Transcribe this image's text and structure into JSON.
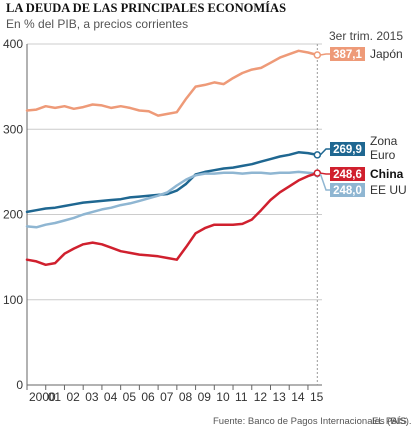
{
  "chart_data": {
    "type": "line",
    "title": "LA DEUDA DE LAS PRINCIPALES ECONOMÍAS",
    "subtitle": "En % del PIB, a precios corrientes",
    "annotation": "3er trim. 2015",
    "source": "Fuente: Banco de Pagos Internacionales (BIS).",
    "credit": "EL PAÍS",
    "ylim": [
      0,
      400
    ],
    "yticks": [
      0,
      100,
      200,
      300,
      400
    ],
    "xlim": [
      2000,
      2015.75
    ],
    "x_ticks": [
      {
        "x": 2000,
        "label": "2000"
      },
      {
        "x": 2001,
        "label": "01"
      },
      {
        "x": 2002,
        "label": "02"
      },
      {
        "x": 2003,
        "label": "03"
      },
      {
        "x": 2004,
        "label": "04"
      },
      {
        "x": 2005,
        "label": "05"
      },
      {
        "x": 2006,
        "label": "06"
      },
      {
        "x": 2007,
        "label": "07"
      },
      {
        "x": 2008,
        "label": "08"
      },
      {
        "x": 2009,
        "label": "09"
      },
      {
        "x": 2010,
        "label": "10"
      },
      {
        "x": 2011,
        "label": "11"
      },
      {
        "x": 2012,
        "label": "12"
      },
      {
        "x": 2013,
        "label": "13"
      },
      {
        "x": 2014,
        "label": "14"
      },
      {
        "x": 2015,
        "label": "15"
      }
    ],
    "grid": "horizontal",
    "series": [
      {
        "name": "Japón",
        "color": "#ee9a78",
        "last_value": "387,1",
        "label_bold": false,
        "x": [
          2000,
          2000.5,
          2001,
          2001.5,
          2002,
          2002.5,
          2003,
          2003.5,
          2004,
          2004.5,
          2005,
          2005.5,
          2006,
          2006.5,
          2007,
          2007.5,
          2008,
          2008.5,
          2009,
          2009.5,
          2010,
          2010.5,
          2011,
          2011.5,
          2012,
          2012.5,
          2013,
          2013.5,
          2014,
          2014.5,
          2015,
          2015.5
        ],
        "values": [
          322,
          323,
          327,
          325,
          327,
          324,
          326,
          329,
          328,
          325,
          327,
          325,
          322,
          321,
          316,
          318,
          320,
          336,
          350,
          352,
          355,
          353,
          360,
          366,
          370,
          372,
          378,
          384,
          388,
          392,
          390,
          387.1
        ]
      },
      {
        "name": "Zona Euro",
        "color": "#1f6791",
        "last_value": "269,9",
        "label_bold": false,
        "x": [
          2000,
          2000.5,
          2001,
          2001.5,
          2002,
          2002.5,
          2003,
          2003.5,
          2004,
          2004.5,
          2005,
          2005.5,
          2006,
          2006.5,
          2007,
          2007.5,
          2008,
          2008.5,
          2009,
          2009.5,
          2010,
          2010.5,
          2011,
          2011.5,
          2012,
          2012.5,
          2013,
          2013.5,
          2014,
          2014.5,
          2015,
          2015.5
        ],
        "values": [
          203,
          205,
          207,
          208,
          210,
          212,
          214,
          215,
          216,
          217,
          218,
          220,
          221,
          222,
          223,
          224,
          228,
          236,
          247,
          250,
          252,
          254,
          255,
          257,
          259,
          262,
          265,
          268,
          270,
          273,
          272,
          269.9
        ]
      },
      {
        "name": "EE UU",
        "color": "#8fb6d2",
        "last_value": "248,0",
        "label_bold": false,
        "x": [
          2000,
          2000.5,
          2001,
          2001.5,
          2002,
          2002.5,
          2003,
          2003.5,
          2004,
          2004.5,
          2005,
          2005.5,
          2006,
          2006.5,
          2007,
          2007.5,
          2008,
          2008.5,
          2009,
          2009.5,
          2010,
          2010.5,
          2011,
          2011.5,
          2012,
          2012.5,
          2013,
          2013.5,
          2014,
          2014.5,
          2015,
          2015.5
        ],
        "values": [
          186,
          185,
          188,
          190,
          193,
          196,
          200,
          203,
          206,
          208,
          211,
          213,
          216,
          219,
          222,
          226,
          234,
          241,
          246,
          248,
          248,
          249,
          249,
          248,
          249,
          249,
          248,
          249,
          249,
          250,
          249,
          248.0
        ]
      },
      {
        "name": "China",
        "color": "#d0202e",
        "last_value": "248,6",
        "label_bold": true,
        "x": [
          2000,
          2000.5,
          2001,
          2001.5,
          2002,
          2002.5,
          2003,
          2003.5,
          2004,
          2004.5,
          2005,
          2005.5,
          2006,
          2006.5,
          2007,
          2007.5,
          2008,
          2008.5,
          2009,
          2009.5,
          2010,
          2010.5,
          2011,
          2011.5,
          2012,
          2012.5,
          2013,
          2013.5,
          2014,
          2014.5,
          2015,
          2015.5
        ],
        "values": [
          147,
          145,
          141,
          143,
          154,
          160,
          165,
          167,
          165,
          161,
          157,
          155,
          153,
          152,
          151,
          149,
          147,
          162,
          178,
          184,
          188,
          188,
          188,
          189,
          194,
          205,
          217,
          226,
          233,
          240,
          245,
          248.6
        ]
      }
    ]
  }
}
